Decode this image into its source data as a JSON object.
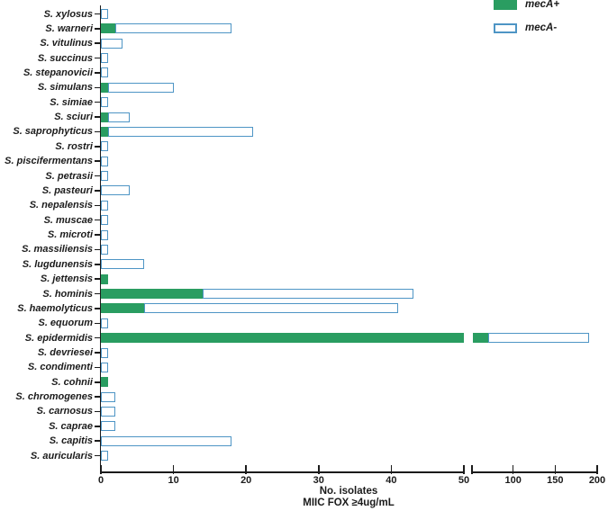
{
  "chart_data": {
    "type": "bar",
    "orientation": "horizontal",
    "stacked": true,
    "title": "",
    "xlabel_line1": "No. isolates",
    "xlabel_line2": "MIIC FOX ≥4ug/mL",
    "ylabel": "",
    "grid": false,
    "axis": {
      "broken": true,
      "segment1": {
        "min": 0,
        "max": 50,
        "ticks": [
          0,
          10,
          20,
          30,
          40,
          50
        ]
      },
      "segment2": {
        "min": 50,
        "max": 200,
        "ticks": [
          100,
          150,
          200
        ]
      }
    },
    "legend_position": "top-right",
    "legend": [
      {
        "label": "mecA+",
        "swatch": "filled"
      },
      {
        "label": "mecA-",
        "swatch": "outlined"
      }
    ],
    "categories": [
      "S. xylosus",
      "S. warneri",
      "S. vitulinus",
      "S. succinus",
      "S. stepanovicii",
      "S. simulans",
      "S. simiae",
      "S. sciuri",
      "S. saprophyticus",
      "S. rostri",
      "S. piscifermentans",
      "S. petrasii",
      "S. pasteuri",
      "S. nepalensis",
      "S. muscae",
      "S. microti",
      "S. massiliensis",
      "S. lugdunensis",
      "S. jettensis",
      "S. hominis",
      "S. haemolyticus",
      "S. equorum",
      "S. epidermidis",
      "S. devriesei",
      "S. condimenti",
      "S. cohnii",
      "S. chromogenes",
      "S. carnosus",
      "S. caprae",
      "S. capitis",
      "S. auricularis"
    ],
    "series": [
      {
        "name": "mecA+",
        "color": "#2a9d61",
        "values": [
          0,
          2,
          0,
          0,
          0,
          1,
          0,
          1,
          1,
          0,
          0,
          0,
          0,
          0,
          0,
          0,
          0,
          0,
          1,
          14,
          6,
          0,
          70,
          0,
          0,
          1,
          0,
          0,
          0,
          0,
          0
        ]
      },
      {
        "name": "mecA-",
        "color": "#ffffff",
        "border_color": "#4e95c5",
        "values": [
          1,
          16,
          3,
          1,
          1,
          9,
          1,
          3,
          20,
          1,
          1,
          1,
          4,
          1,
          1,
          1,
          1,
          6,
          0,
          29,
          35,
          1,
          120,
          1,
          1,
          0,
          2,
          2,
          2,
          18,
          1
        ]
      }
    ]
  },
  "colors": {
    "mecA_positive": "#2a9d61",
    "mecA_negative_border": "#4e95c5",
    "axis": "#1b1b1b",
    "background": "#ffffff"
  }
}
